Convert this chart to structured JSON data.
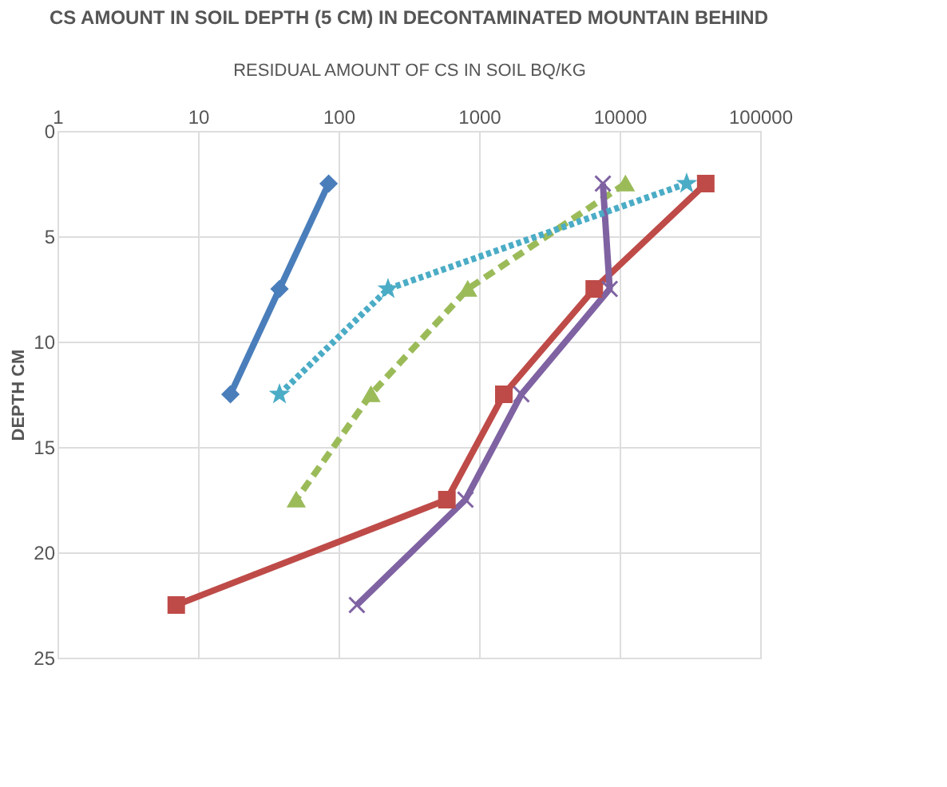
{
  "chart_data": {
    "type": "line",
    "title": "CS AMOUNT IN SOIL DEPTH (5 CM) IN DECONTAMINATED MOUNTAIN BEHIND",
    "xlabel": "RESIDUAL AMOUNT OF CS IN SOIL  BQ/KG",
    "ylabel": "DEPTH  CM",
    "log": "x",
    "xlim": [
      1,
      100000
    ],
    "xticks": [
      1,
      10,
      100,
      1000,
      10000,
      100000
    ],
    "ylim": [
      25,
      0
    ],
    "yticks": [
      0,
      5,
      10,
      15,
      20,
      25
    ],
    "grid": true,
    "series": [
      {
        "color": "#4a7ebb",
        "marker": "diamond",
        "line_style": "solid",
        "x": [
          85,
          38,
          17
        ],
        "values": [
          2.5,
          7.5,
          12.5
        ]
      },
      {
        "color": "#be4b48",
        "marker": "square",
        "line_style": "solid",
        "x": [
          41000,
          6600,
          1500,
          590,
          7
        ],
        "values": [
          2.5,
          7.5,
          12.5,
          17.5,
          22.5
        ]
      },
      {
        "color": "#9bbb59",
        "marker": "triangle",
        "line_style": "dashed",
        "x": [
          11000,
          830,
          170,
          50
        ],
        "values": [
          2.5,
          7.5,
          12.5,
          17.5
        ]
      },
      {
        "color": "#7f62a2",
        "marker": "cross",
        "line_style": "solid",
        "x": [
          7600,
          8500,
          2000,
          800,
          135
        ],
        "values": [
          2.5,
          7.5,
          12.5,
          17.5,
          22.5
        ]
      },
      {
        "color": "#4bacc6",
        "marker": "star",
        "line_style": "dotted",
        "x": [
          30000,
          225,
          38
        ],
        "values": [
          2.5,
          7.5,
          12.5
        ]
      }
    ]
  }
}
